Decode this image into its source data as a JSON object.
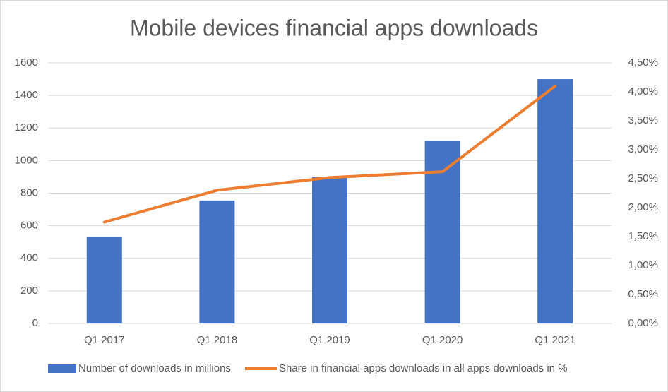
{
  "chart_data": {
    "type": "bar",
    "title": "Mobile devices financial apps downloads",
    "categories": [
      "Q1 2017",
      "Q1 2018",
      "Q1 2019",
      "Q1 2020",
      "Q1 2021"
    ],
    "series": [
      {
        "name": "Number of downloads in millions",
        "type": "bar",
        "color": "#4472c4",
        "values": [
          530,
          755,
          900,
          1120,
          1500
        ]
      },
      {
        "name": "Share in financial apps downloads in all apps downloads in %",
        "type": "line",
        "axis": "y2",
        "color": "#ed7d31",
        "values": [
          1.75,
          2.3,
          2.52,
          2.62,
          4.1
        ]
      }
    ],
    "ylim": [
      0,
      1600
    ],
    "yticks": [
      0,
      200,
      400,
      600,
      800,
      1000,
      1200,
      1400,
      1600
    ],
    "y2lim": [
      0,
      4.5
    ],
    "y2ticks": [
      {
        "value": 0,
        "label": "0,00%"
      },
      {
        "value": 0.5,
        "label": "0,50%"
      },
      {
        "value": 1,
        "label": "1,00%"
      },
      {
        "value": 1.5,
        "label": "1,50%"
      },
      {
        "value": 2,
        "label": "2,00%"
      },
      {
        "value": 2.5,
        "label": "2,50%"
      },
      {
        "value": 3,
        "label": "3,00%"
      },
      {
        "value": 3.5,
        "label": "3,50%"
      },
      {
        "value": 4,
        "label": "4,00%"
      },
      {
        "value": 4.5,
        "label": "4,50%"
      }
    ],
    "grid": true,
    "legend": "bottom"
  }
}
